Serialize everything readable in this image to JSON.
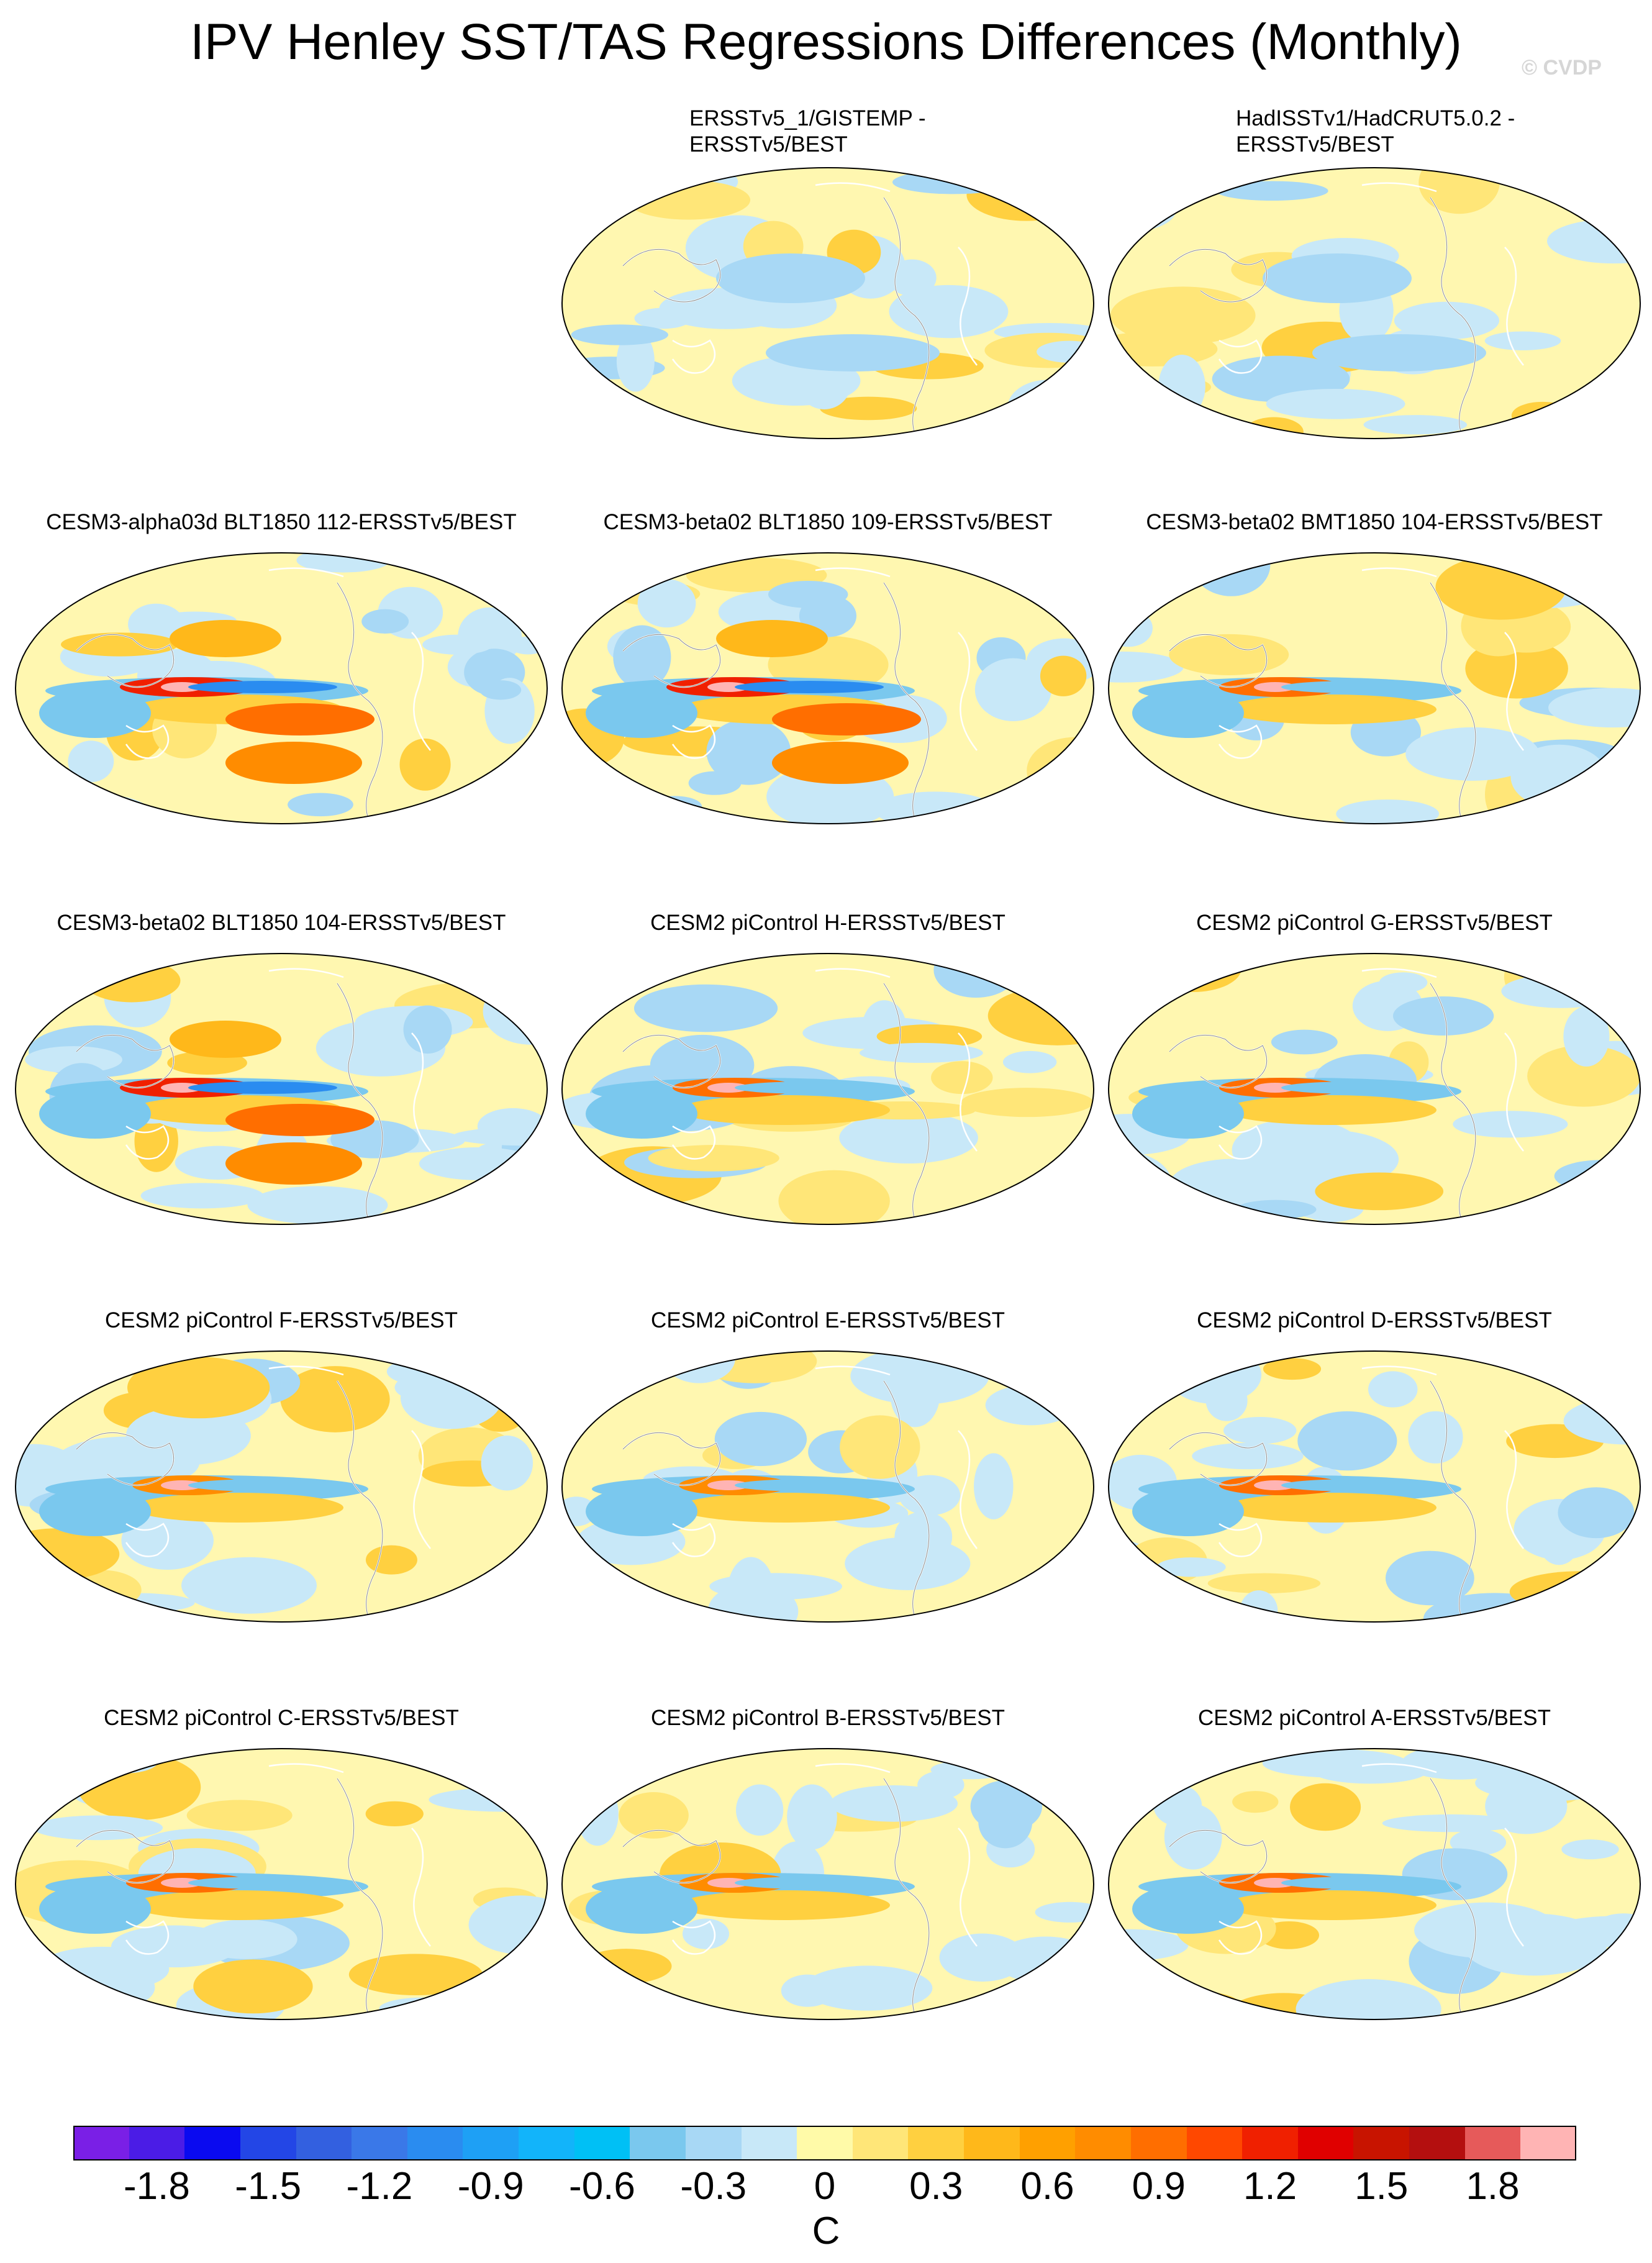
{
  "title": "IPV Henley SST/TAS Regressions Differences (Monthly)",
  "watermark": "© CVDP",
  "panels": [
    {
      "title": [
        "ERSSTv5_1/GISTEMP -",
        "ERSSTv5/BEST"
      ],
      "align": "left",
      "hotspot": 0
    },
    {
      "title": [
        "HadISSTv1/HadCRUT5.0.2 -",
        "ERSSTv5/BEST"
      ],
      "align": "left",
      "hotspot": 0
    },
    {
      "title": [
        "CESM3-alpha03d BLT1850 112-ERSSTv5/BEST"
      ],
      "hotspot": 3
    },
    {
      "title": [
        "CESM3-beta02 BLT1850 109-ERSSTv5/BEST"
      ],
      "hotspot": 3
    },
    {
      "title": [
        "CESM3-beta02 BMT1850 104-ERSSTv5/BEST"
      ],
      "hotspot": 2
    },
    {
      "title": [
        "CESM3-beta02 BLT1850 104-ERSSTv5/BEST"
      ],
      "hotspot": 3
    },
    {
      "title": [
        "CESM2 piControl H-ERSSTv5/BEST"
      ],
      "hotspot": 2
    },
    {
      "title": [
        "CESM2 piControl G-ERSSTv5/BEST"
      ],
      "hotspot": 2
    },
    {
      "title": [
        "CESM2 piControl F-ERSSTv5/BEST"
      ],
      "hotspot": 1
    },
    {
      "title": [
        "CESM2 piControl E-ERSSTv5/BEST"
      ],
      "hotspot": 1
    },
    {
      "title": [
        "CESM2 piControl D-ERSSTv5/BEST"
      ],
      "hotspot": 2
    },
    {
      "title": [
        "CESM2 piControl C-ERSSTv5/BEST"
      ],
      "hotspot": 2
    },
    {
      "title": [
        "CESM2 piControl B-ERSSTv5/BEST"
      ],
      "hotspot": 1
    },
    {
      "title": [
        "CESM2 piControl A-ERSSTv5/BEST"
      ],
      "hotspot": 2
    }
  ],
  "colorbar": {
    "colors": [
      "#7a1fe6",
      "#4b1ce6",
      "#0a0af0",
      "#2346e6",
      "#3360e0",
      "#3a78e8",
      "#2a8cf0",
      "#1ea0f5",
      "#12b4fa",
      "#00c0f5",
      "#7ac8ee",
      "#a8d8f5",
      "#c8e8f8",
      "#fffaa8",
      "#ffe678",
      "#ffd040",
      "#ffb81a",
      "#ffa000",
      "#ff8c00",
      "#ff6e00",
      "#ff4800",
      "#f02000",
      "#e00000",
      "#c81400",
      "#b40f0f",
      "#e65a5a",
      "#ffb4b4"
    ],
    "ticks": [
      "-1.8",
      "-1.5",
      "-1.2",
      "-0.9",
      "-0.6",
      "-0.3",
      "0",
      "0.3",
      "0.6",
      "0.9",
      "1.2",
      "1.5",
      "1.8"
    ],
    "unit": "C"
  }
}
